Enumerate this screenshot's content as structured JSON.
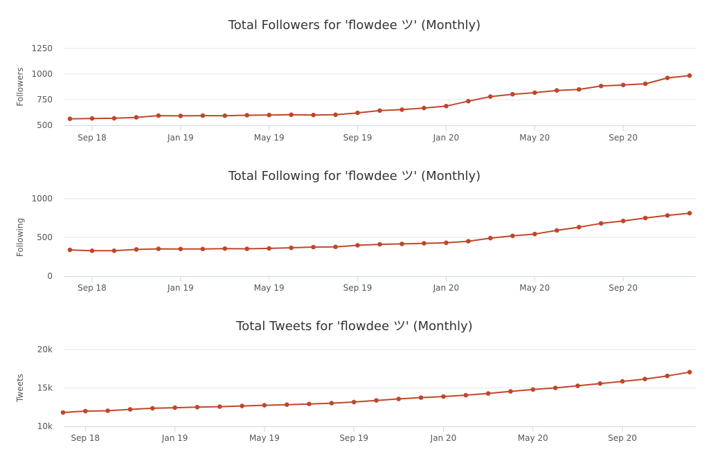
{
  "colors": {
    "line": "#c0462a",
    "grid": "#e6e6e6",
    "axis": "#ccd6eb",
    "text": "#333333"
  },
  "chart_data": [
    {
      "type": "line",
      "title": "Total Followers for 'flowdee ツ' (Monthly)",
      "ylabel": "Followers",
      "xlabel": "",
      "x_tick_labels": [
        "Sep 18",
        "Jan 19",
        "May 19",
        "Sep 19",
        "Jan 20",
        "May 20",
        "Sep 20"
      ],
      "y_tick_labels": [
        "500",
        "750",
        "1000",
        "1250"
      ],
      "y_ticks": [
        500,
        750,
        1000,
        1250
      ],
      "ylim": [
        500,
        1250
      ],
      "grid": true,
      "x": [
        "2018-08",
        "2018-09",
        "2018-10",
        "2018-11",
        "2018-12",
        "2019-01",
        "2019-02",
        "2019-03",
        "2019-04",
        "2019-05",
        "2019-06",
        "2019-07",
        "2019-08",
        "2019-09",
        "2019-10",
        "2019-11",
        "2019-12",
        "2020-01",
        "2020-02",
        "2020-03",
        "2020-04",
        "2020-05",
        "2020-06",
        "2020-07",
        "2020-08",
        "2020-09",
        "2020-10",
        "2020-11",
        "2020-12"
      ],
      "series": [
        {
          "values": [
            563,
            566,
            568,
            577,
            594,
            592,
            594,
            593,
            598,
            600,
            603,
            600,
            603,
            621,
            643,
            653,
            668,
            687,
            735,
            780,
            803,
            818,
            840,
            850,
            883,
            893,
            905,
            962,
            985
          ]
        }
      ]
    },
    {
      "type": "line",
      "title": "Total Following for 'flowdee ツ' (Monthly)",
      "ylabel": "Following",
      "xlabel": "",
      "x_tick_labels": [
        "Sep 18",
        "Jan 19",
        "May 19",
        "Sep 19",
        "Jan 20",
        "May 20",
        "Sep 20"
      ],
      "y_tick_labels": [
        "0",
        "500",
        "1000"
      ],
      "y_ticks": [
        0,
        500,
        1000
      ],
      "ylim": [
        0,
        1000
      ],
      "grid": true,
      "x": [
        "2018-08",
        "2018-09",
        "2018-10",
        "2018-11",
        "2018-12",
        "2019-01",
        "2019-02",
        "2019-03",
        "2019-04",
        "2019-05",
        "2019-06",
        "2019-07",
        "2019-08",
        "2019-09",
        "2019-10",
        "2019-11",
        "2019-12",
        "2020-01",
        "2020-02",
        "2020-03",
        "2020-04",
        "2020-05",
        "2020-06",
        "2020-07",
        "2020-08",
        "2020-09",
        "2020-10",
        "2020-11",
        "2020-12"
      ],
      "series": [
        {
          "values": [
            338,
            328,
            328,
            345,
            352,
            350,
            350,
            355,
            353,
            358,
            366,
            375,
            378,
            398,
            410,
            416,
            423,
            430,
            450,
            490,
            520,
            543,
            590,
            632,
            680,
            712,
            750,
            783,
            812
          ]
        }
      ]
    },
    {
      "type": "line",
      "title": "Total Tweets for 'flowdee ツ' (Monthly)",
      "ylabel": "Tweets",
      "xlabel": "",
      "x_tick_labels": [
        "Sep 18",
        "Jan 19",
        "May 19",
        "Sep 19",
        "Jan 20",
        "May 20",
        "Sep 20"
      ],
      "y_tick_labels": [
        "10k",
        "15k",
        "20k"
      ],
      "y_ticks": [
        10000,
        15000,
        20000
      ],
      "ylim": [
        10000,
        20000
      ],
      "grid": true,
      "x": [
        "2018-08",
        "2018-09",
        "2018-10",
        "2018-11",
        "2018-12",
        "2019-01",
        "2019-02",
        "2019-03",
        "2019-04",
        "2019-05",
        "2019-06",
        "2019-07",
        "2019-08",
        "2019-09",
        "2019-10",
        "2019-11",
        "2019-12",
        "2020-01",
        "2020-02",
        "2020-03",
        "2020-04",
        "2020-05",
        "2020-06",
        "2020-07",
        "2020-08",
        "2020-09",
        "2020-10",
        "2020-11",
        "2020-12"
      ],
      "series": [
        {
          "values": [
            11800,
            11980,
            12030,
            12210,
            12350,
            12420,
            12500,
            12560,
            12650,
            12740,
            12820,
            12910,
            13010,
            13160,
            13370,
            13570,
            13740,
            13870,
            14050,
            14280,
            14550,
            14790,
            15000,
            15280,
            15570,
            15850,
            16150,
            16560,
            17050
          ]
        }
      ]
    }
  ]
}
